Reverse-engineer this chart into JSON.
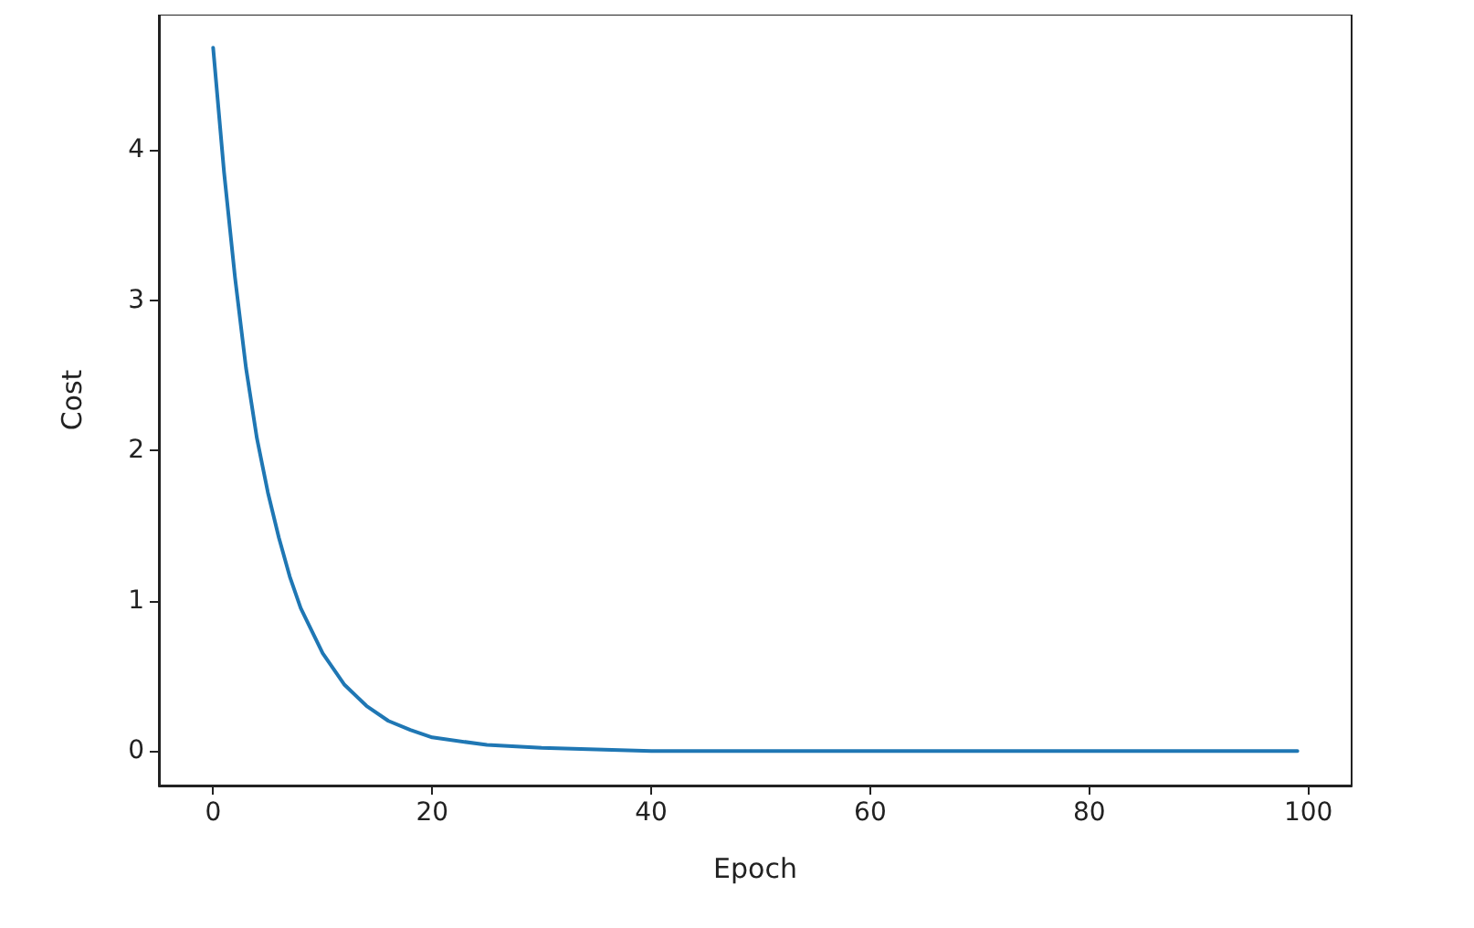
{
  "chart_data": {
    "type": "line",
    "xlabel": "Epoch",
    "ylabel": "Cost",
    "x": [
      0,
      1,
      2,
      3,
      4,
      5,
      6,
      7,
      8,
      10,
      12,
      14,
      16,
      18,
      20,
      25,
      30,
      40,
      60,
      80,
      99
    ],
    "series": [
      {
        "color": "#1f77b4",
        "values": [
          4.68,
          3.85,
          3.15,
          2.55,
          2.08,
          1.72,
          1.42,
          1.16,
          0.95,
          0.65,
          0.44,
          0.3,
          0.2,
          0.14,
          0.09,
          0.04,
          0.02,
          0,
          0,
          0,
          0
        ]
      }
    ],
    "xlim": [
      -4.95,
      103.95
    ],
    "xticks": [
      0,
      20,
      40,
      60,
      80,
      100
    ],
    "ylim": [
      -0.23,
      4.9
    ],
    "yticks": [
      0,
      1,
      2,
      3,
      4
    ],
    "grid": false,
    "marker": "none",
    "line_style": "solid"
  }
}
